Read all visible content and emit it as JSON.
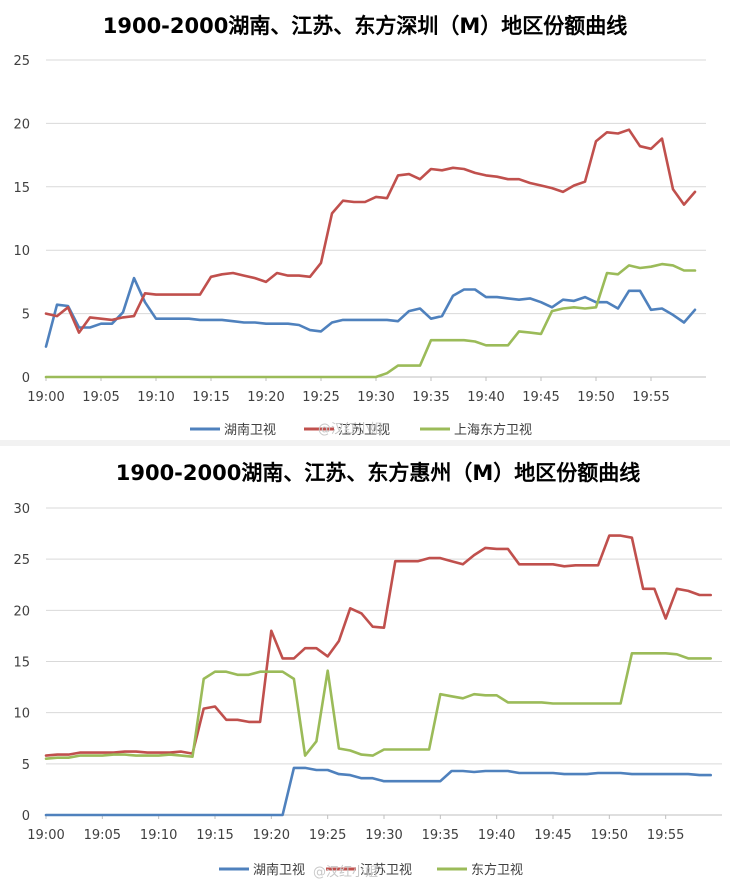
{
  "chart_data": [
    {
      "type": "line",
      "title": "1900-2000湖南、江苏、东方深圳（M）地区份额曲线",
      "xlabel": "",
      "ylabel": "",
      "ylim": [
        0,
        25
      ],
      "yticks": [
        "0",
        "5",
        "10",
        "15",
        "20",
        "25"
      ],
      "xticks": [
        "19:00",
        "19:05",
        "19:10",
        "19:15",
        "19:20",
        "19:25",
        "19:30",
        "19:35",
        "19:40",
        "19:45",
        "19:50",
        "19:55"
      ],
      "grid": true,
      "legend": "bottom",
      "x_minutes": [
        0,
        1,
        2,
        3,
        4,
        5,
        6,
        7,
        8,
        9,
        10,
        11,
        12,
        13,
        14,
        15,
        16,
        17,
        18,
        19,
        20,
        21,
        22,
        23,
        24,
        25,
        26,
        27,
        28,
        29,
        30,
        31,
        32,
        33,
        34,
        35,
        36,
        37,
        38,
        39,
        40,
        41,
        42,
        43,
        44,
        45,
        46,
        47,
        48,
        49,
        50,
        51,
        52,
        53,
        54,
        55,
        56,
        57,
        58,
        59
      ],
      "series": [
        {
          "name": "湖南卫视",
          "color": "#4f81bd",
          "values": [
            2.4,
            5.7,
            5.6,
            3.9,
            3.9,
            4.2,
            4.2,
            5.1,
            7.8,
            5.9,
            4.6,
            4.6,
            4.6,
            4.6,
            4.5,
            4.5,
            4.5,
            4.4,
            4.3,
            4.3,
            4.2,
            4.2,
            4.2,
            4.1,
            3.7,
            3.6,
            4.3,
            4.5,
            4.5,
            4.5,
            4.5,
            4.5,
            4.4,
            5.2,
            5.4,
            4.6,
            4.8,
            6.4,
            6.9,
            6.9,
            6.3,
            6.3,
            6.2,
            6.1,
            6.2,
            5.9,
            5.5,
            6.1,
            6.0,
            6.3,
            5.9,
            5.9,
            5.4,
            6.8,
            6.8,
            5.3,
            5.4,
            4.9,
            4.3,
            5.3
          ]
        },
        {
          "name": "江苏卫视",
          "color": "#c0504d",
          "values": [
            5.0,
            4.8,
            5.5,
            3.5,
            4.7,
            4.6,
            4.5,
            4.7,
            4.8,
            6.6,
            6.5,
            6.5,
            6.5,
            6.5,
            6.5,
            7.9,
            8.1,
            8.2,
            8.0,
            7.8,
            7.5,
            8.2,
            8.0,
            8.0,
            7.9,
            9.0,
            12.9,
            13.9,
            13.8,
            13.8,
            14.2,
            14.1,
            15.9,
            16.0,
            15.6,
            16.4,
            16.3,
            16.5,
            16.4,
            16.1,
            15.9,
            15.8,
            15.6,
            15.6,
            15.3,
            15.1,
            14.9,
            14.6,
            15.1,
            15.4,
            18.6,
            19.3,
            19.2,
            19.5,
            18.2,
            18.0,
            18.8,
            14.8,
            13.6,
            14.6
          ]
        },
        {
          "name": "上海东方卫视",
          "color": "#9bbb59",
          "values": [
            0,
            0,
            0,
            0,
            0,
            0,
            0,
            0,
            0,
            0,
            0,
            0,
            0,
            0,
            0,
            0,
            0,
            0,
            0,
            0,
            0,
            0,
            0,
            0,
            0,
            0,
            0,
            0,
            0,
            0,
            0,
            0.3,
            0.9,
            0.9,
            0.9,
            2.9,
            2.9,
            2.9,
            2.9,
            2.8,
            2.5,
            2.5,
            2.5,
            3.6,
            3.5,
            3.4,
            5.2,
            5.4,
            5.5,
            5.4,
            5.5,
            8.2,
            8.1,
            8.8,
            8.6,
            8.7,
            8.9,
            8.8,
            8.4,
            8.4
          ]
        }
      ]
    },
    {
      "type": "line",
      "title": "1900-2000湖南、江苏、东方惠州（M）地区份额曲线",
      "xlabel": "",
      "ylabel": "",
      "ylim": [
        0,
        30
      ],
      "yticks": [
        "0",
        "5",
        "10",
        "15",
        "20",
        "25",
        "30"
      ],
      "xticks": [
        "19:00",
        "19:05",
        "19:10",
        "19:15",
        "19:20",
        "19:25",
        "19:30",
        "19:35",
        "19:40",
        "19:45",
        "19:50",
        "19:55"
      ],
      "grid": true,
      "legend": "bottom",
      "x_minutes": [
        0,
        1,
        2,
        3,
        4,
        5,
        6,
        7,
        8,
        9,
        10,
        11,
        12,
        13,
        14,
        15,
        16,
        17,
        18,
        19,
        20,
        21,
        22,
        23,
        24,
        25,
        26,
        27,
        28,
        29,
        30,
        31,
        32,
        33,
        34,
        35,
        36,
        37,
        38,
        39,
        40,
        41,
        42,
        43,
        44,
        45,
        46,
        47,
        48,
        49,
        50,
        51,
        52,
        53,
        54,
        55,
        56,
        57,
        58,
        59
      ],
      "series": [
        {
          "name": "湖南卫视",
          "color": "#4f81bd",
          "values": [
            0,
            0,
            0,
            0,
            0,
            0,
            0,
            0,
            0,
            0,
            0,
            0,
            0,
            0,
            0,
            0,
            0,
            0,
            0,
            0,
            0,
            0,
            4.6,
            4.6,
            4.4,
            4.4,
            4.0,
            3.9,
            3.6,
            3.6,
            3.3,
            3.3,
            3.3,
            3.3,
            3.3,
            3.3,
            4.3,
            4.3,
            4.2,
            4.3,
            4.3,
            4.3,
            4.1,
            4.1,
            4.1,
            4.1,
            4.0,
            4.0,
            4.0,
            4.1,
            4.1,
            4.1,
            4.0,
            4.0,
            4.0,
            4.0,
            4.0,
            4.0,
            3.9,
            3.9
          ]
        },
        {
          "name": "江苏卫视",
          "color": "#c0504d",
          "values": [
            5.8,
            5.9,
            5.9,
            6.1,
            6.1,
            6.1,
            6.1,
            6.2,
            6.2,
            6.1,
            6.1,
            6.1,
            6.2,
            6.0,
            10.4,
            10.6,
            9.3,
            9.3,
            9.1,
            9.1,
            18.0,
            15.3,
            15.3,
            16.3,
            16.3,
            15.5,
            17.0,
            20.2,
            19.7,
            18.4,
            18.3,
            24.8,
            24.8,
            24.8,
            25.1,
            25.1,
            24.8,
            24.5,
            25.4,
            26.1,
            26.0,
            26.0,
            24.5,
            24.5,
            24.5,
            24.5,
            24.3,
            24.4,
            24.4,
            24.4,
            27.3,
            27.3,
            27.1,
            22.1,
            22.1,
            19.2,
            22.1,
            21.9,
            21.5,
            21.5
          ]
        },
        {
          "name": "东方卫视",
          "color": "#9bbb59",
          "values": [
            5.5,
            5.6,
            5.6,
            5.8,
            5.8,
            5.8,
            5.9,
            5.9,
            5.8,
            5.8,
            5.8,
            5.9,
            5.8,
            5.7,
            13.3,
            14.0,
            14.0,
            13.7,
            13.7,
            14.0,
            14.0,
            14.0,
            13.3,
            5.8,
            7.2,
            14.1,
            6.5,
            6.3,
            5.9,
            5.8,
            6.4,
            6.4,
            6.4,
            6.4,
            6.4,
            11.8,
            11.6,
            11.4,
            11.8,
            11.7,
            11.7,
            11.0,
            11.0,
            11.0,
            11.0,
            10.9,
            10.9,
            10.9,
            10.9,
            10.9,
            10.9,
            10.9,
            15.8,
            15.8,
            15.8,
            15.8,
            15.7,
            15.3,
            15.3,
            15.3
          ]
        }
      ]
    }
  ],
  "watermarks": [
    "@汉红小姐",
    "@汉红小姐"
  ]
}
